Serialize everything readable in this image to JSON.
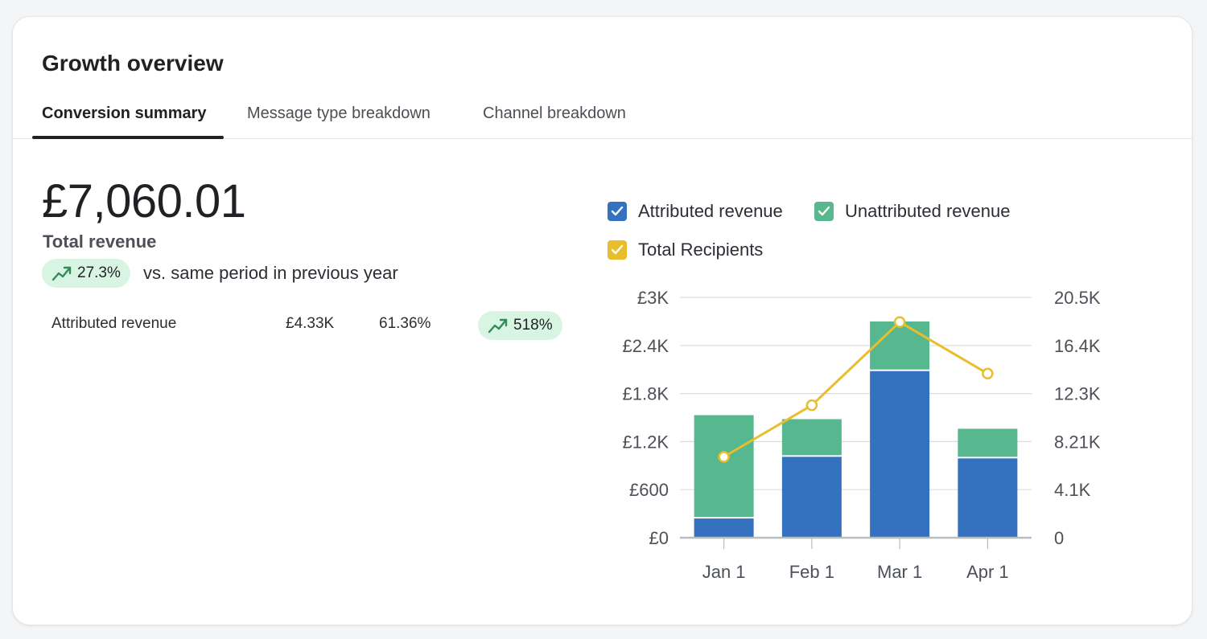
{
  "card": {
    "title": "Growth overview"
  },
  "tabs": [
    {
      "label": "Conversion summary",
      "active": true
    },
    {
      "label": "Message type breakdown",
      "active": false
    },
    {
      "label": "Channel breakdown",
      "active": false
    }
  ],
  "summary": {
    "total_value": "£7,060.01",
    "total_label": "Total revenue",
    "change_pill": "27.3%",
    "change_text": "vs. same period in previous year",
    "trend_icon": "trending-up-icon"
  },
  "breakdown_row": {
    "label": "Attributed revenue",
    "amount": "£4.33K",
    "share": "61.36%",
    "change": "518%"
  },
  "colors": {
    "attributed": "#3472bf",
    "unattributed": "#57b78e",
    "recipients": "#e9be2c",
    "pill_bg": "#d8f5e3",
    "trend_green": "#2e8c56"
  },
  "legend": [
    {
      "label": "Attributed revenue",
      "color": "#3472bf",
      "checked": true
    },
    {
      "label": "Unattributed revenue",
      "color": "#57b78e",
      "checked": true
    },
    {
      "label": "Total Recipients",
      "color": "#e9be2c",
      "checked": true
    }
  ],
  "chart_data": {
    "type": "bar",
    "stacked": true,
    "categories": [
      "Jan 1",
      "Feb 1",
      "Mar 1",
      "Apr 1"
    ],
    "series": [
      {
        "name": "Attributed revenue",
        "axis": "left",
        "type": "bar",
        "values": [
          240,
          1010,
          2080,
          990
        ]
      },
      {
        "name": "Unattributed revenue",
        "axis": "left",
        "type": "bar",
        "values": [
          1290,
          470,
          620,
          370
        ]
      },
      {
        "name": "Total Recipients",
        "axis": "right",
        "type": "line",
        "values": [
          6900,
          11300,
          18400,
          14000
        ]
      }
    ],
    "left_axis": {
      "min": 0,
      "max": 3000,
      "ticks": [
        0,
        600,
        1200,
        1800,
        2400,
        3000
      ],
      "tick_labels": [
        "£0",
        "£600",
        "£1.2K",
        "£1.8K",
        "£2.4K",
        "£3K"
      ]
    },
    "right_axis": {
      "min": 0,
      "max": 20500,
      "ticks": [
        0,
        4100,
        8210,
        12300,
        16400,
        20500
      ],
      "tick_labels": [
        "0",
        "4.1K",
        "8.21K",
        "12.3K",
        "16.4K",
        "20.5K"
      ]
    },
    "grid": true,
    "legend_position": "top"
  }
}
